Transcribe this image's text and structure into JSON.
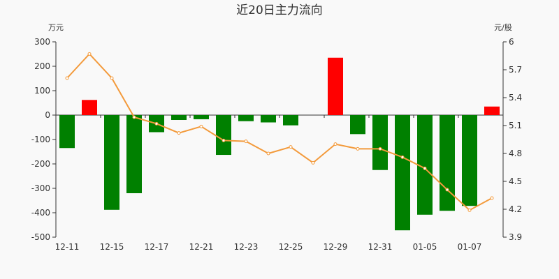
{
  "chart_data": {
    "type": "bar+line",
    "title": "近20日主力流向",
    "left_axis": {
      "unit": "万元",
      "range": [
        -500,
        300
      ],
      "ticks": [
        300,
        200,
        100,
        0,
        -100,
        -200,
        -300,
        -400,
        -500
      ]
    },
    "right_axis": {
      "unit": "元/股",
      "range": [
        3.9,
        6.0
      ],
      "ticks": [
        "6",
        "5.7",
        "5.4",
        "5.1",
        "4.8",
        "4.5",
        "4.2",
        "3.9"
      ]
    },
    "x_tick_labels": [
      "12-11",
      "12-15",
      "12-17",
      "12-21",
      "12-23",
      "12-25",
      "12-29",
      "12-31",
      "01-05",
      "01-07"
    ],
    "colors": {
      "inflow": "#ff0000",
      "outflow": "#008000",
      "price_line": "#f39a3b"
    },
    "series": [
      {
        "type": "bar",
        "axis": "left",
        "values": [
          -135,
          62,
          -388,
          -320,
          -70,
          -20,
          -17,
          -163,
          -25,
          -30,
          -42,
          0,
          235,
          -78,
          -225,
          -472,
          -408,
          -392,
          -372,
          35
        ]
      },
      {
        "type": "line",
        "axis": "right",
        "values": [
          5.61,
          5.87,
          5.61,
          5.19,
          5.12,
          5.02,
          5.09,
          4.94,
          4.93,
          4.8,
          4.87,
          4.7,
          4.9,
          4.85,
          4.85,
          4.76,
          4.64,
          4.41,
          4.19,
          4.32
        ]
      }
    ]
  }
}
